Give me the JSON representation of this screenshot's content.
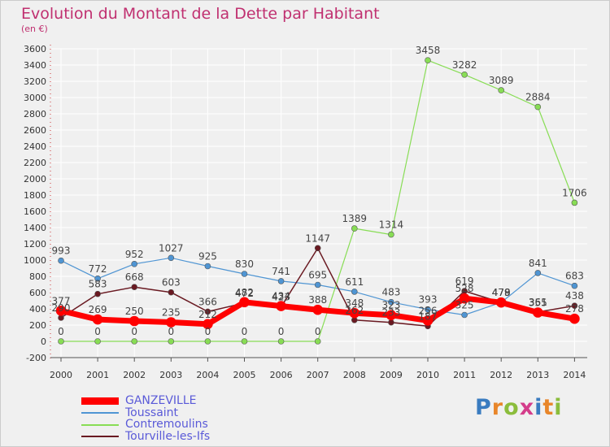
{
  "title": "Evolution du Montant de la Dette par Habitant",
  "subtitle": "(en €)",
  "logo_text": "Proxiti",
  "colors": {
    "ganzeville": "#ff0000",
    "toussaint": "#4f95d3",
    "contremoulins": "#88dd55",
    "tourville": "#6a1a22",
    "title": "#c03070",
    "legend_text": "#5a5ad8"
  },
  "chart_data": {
    "type": "line",
    "categories": [
      "2000",
      "2001",
      "2002",
      "2003",
      "2004",
      "2005",
      "2006",
      "2007",
      "2008",
      "2009",
      "2010",
      "2011",
      "2012",
      "2013",
      "2014"
    ],
    "ylim": [
      -200,
      3600
    ],
    "yticks": [
      -200,
      0,
      200,
      400,
      600,
      800,
      1000,
      1200,
      1400,
      1600,
      1800,
      2000,
      2200,
      2400,
      2600,
      2800,
      3000,
      3200,
      3400,
      3600
    ],
    "grid": true,
    "legend_position": "bottom-left",
    "series": [
      {
        "name": "GANZEVILLE",
        "key": "ganzeville",
        "values": [
          377,
          269,
          250,
          235,
          212,
          482,
          434,
          388,
          348,
          323,
          256,
          528,
          478,
          355,
          278
        ]
      },
      {
        "name": "Toussaint",
        "key": "toussaint",
        "values": [
          993,
          772,
          952,
          1027,
          925,
          830,
          741,
          695,
          611,
          483,
          393,
          325,
          479,
          841,
          683
        ]
      },
      {
        "name": "Contremoulins",
        "key": "contremoulins",
        "values": [
          0,
          0,
          0,
          0,
          0,
          0,
          0,
          0,
          1389,
          1314,
          3458,
          3282,
          3089,
          2884,
          1706
        ]
      },
      {
        "name": "Tourville-les-Ifs",
        "key": "tourville",
        "values": [
          290,
          583,
          668,
          603,
          366,
          472,
          423,
          1147,
          262,
          233,
          187,
          619,
          479,
          361,
          438
        ]
      }
    ]
  }
}
